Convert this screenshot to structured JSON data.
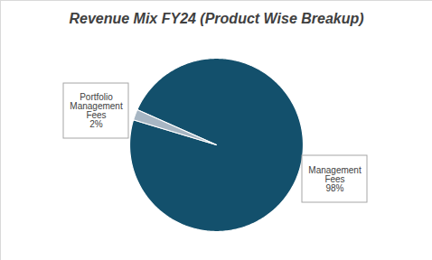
{
  "chart_data": {
    "type": "pie",
    "title": "Revenue Mix FY24 (Product Wise Breakup)",
    "categories": [
      "Management Fees",
      "Portfolio Management Fees"
    ],
    "values": [
      98,
      2
    ],
    "value_labels": [
      "98%",
      "2%"
    ],
    "colors": [
      "#13506C",
      "#A7B6C3"
    ],
    "data_labels": true
  }
}
